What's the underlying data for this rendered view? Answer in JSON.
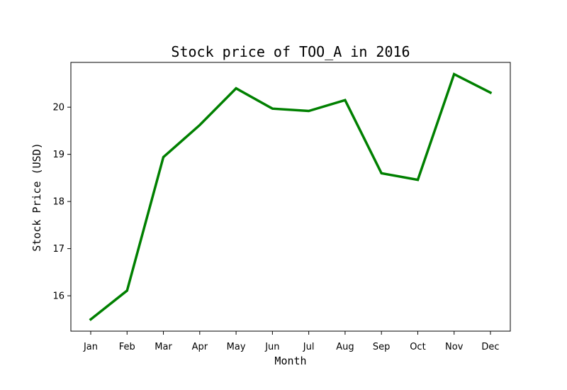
{
  "chart_data": {
    "type": "line",
    "title": "Stock price of TOO_A in 2016",
    "xlabel": "Month",
    "ylabel": "Stock Price (USD)",
    "categories": [
      "Jan",
      "Feb",
      "Mar",
      "Apr",
      "May",
      "Jun",
      "Jul",
      "Aug",
      "Sep",
      "Oct",
      "Nov",
      "Dec"
    ],
    "series": [
      {
        "values": [
          15.5,
          16.11,
          18.94,
          19.62,
          20.4,
          19.97,
          19.92,
          20.15,
          18.6,
          18.46,
          20.7,
          20.31
        ]
      }
    ],
    "yticks": [
      "16",
      "17",
      "18",
      "19",
      "20"
    ],
    "ylim": [
      15.25,
      20.95
    ],
    "line_color": "#008000",
    "grid": false,
    "legend": "none"
  }
}
